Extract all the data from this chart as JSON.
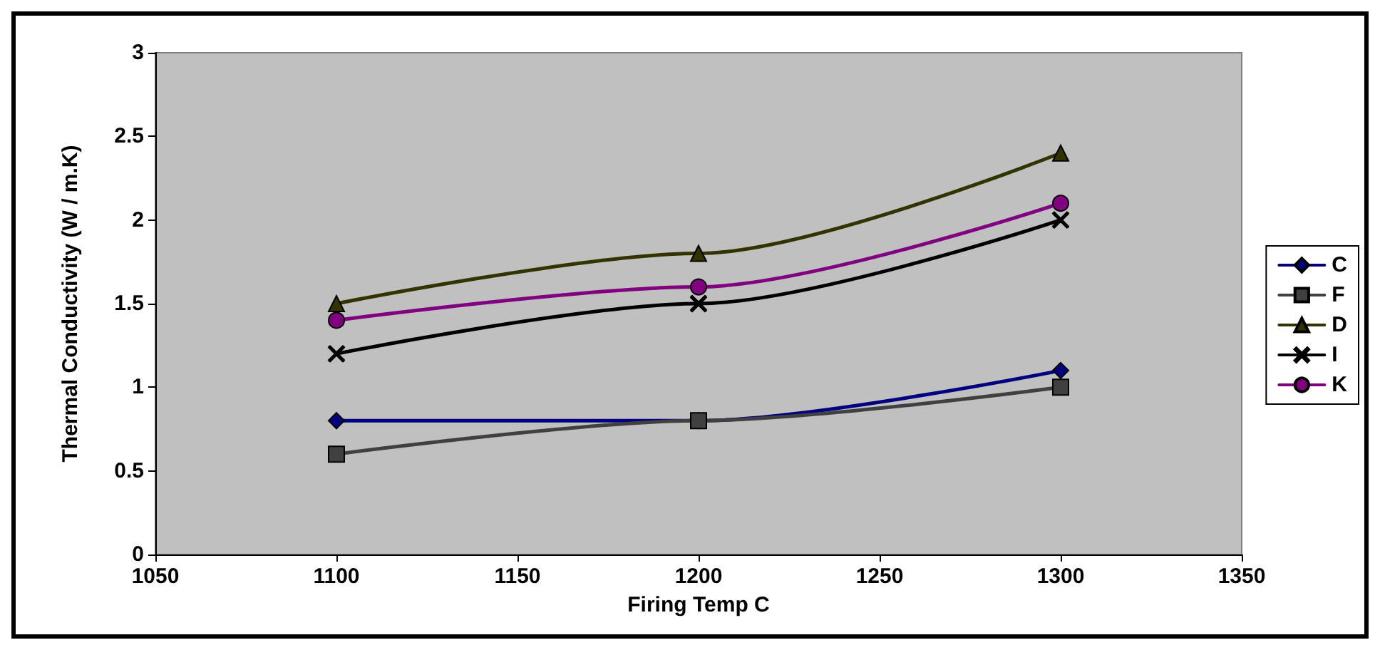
{
  "chart_data": {
    "type": "line",
    "xlabel": "Firing Temp C",
    "ylabel": "Thermal Conductivity (W / m.K)",
    "x": [
      1100,
      1200,
      1300
    ],
    "series": [
      {
        "name": "C",
        "color": "#000080",
        "marker": "diamond",
        "values": [
          0.8,
          0.8,
          1.1
        ]
      },
      {
        "name": "F",
        "color": "#404040",
        "marker": "square",
        "values": [
          0.6,
          0.8,
          1.0
        ]
      },
      {
        "name": "D",
        "color": "#333300",
        "marker": "triangle",
        "values": [
          1.5,
          1.8,
          2.4
        ]
      },
      {
        "name": "I",
        "color": "#000000",
        "marker": "cross",
        "values": [
          1.2,
          1.5,
          2.0
        ]
      },
      {
        "name": "K",
        "color": "#800080",
        "marker": "circle",
        "values": [
          1.4,
          1.6,
          2.1
        ]
      }
    ],
    "xlim": [
      1050,
      1350
    ],
    "xticks": [
      1050,
      1100,
      1150,
      1200,
      1250,
      1300,
      1350
    ],
    "ylim": [
      0,
      3
    ],
    "yticks": [
      0,
      0.5,
      1,
      1.5,
      2,
      2.5,
      3
    ],
    "grid": false,
    "legend": "right",
    "line_style": "solid"
  }
}
